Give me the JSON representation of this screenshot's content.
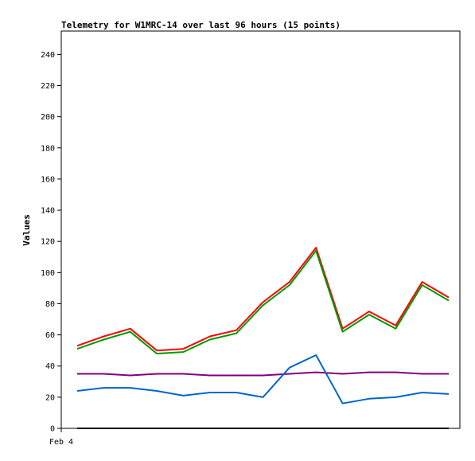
{
  "chart_data": {
    "type": "line",
    "title": "Telemetry for W1MRC-14 over last 96 hours (15 points)",
    "xlabel": "",
    "ylabel": "Values",
    "x_tick_labels": [
      "Feb 4"
    ],
    "yticks": [
      0,
      20,
      40,
      60,
      80,
      100,
      120,
      140,
      160,
      180,
      200,
      220,
      240
    ],
    "ylim": [
      0,
      255
    ],
    "grid": false,
    "legend": "none",
    "series": [
      {
        "color": "#ff0000",
        "values": [
          53,
          59,
          64,
          50,
          51,
          59,
          63,
          81,
          94,
          116,
          64,
          75,
          66,
          94,
          84
        ]
      },
      {
        "color": "#009900",
        "values": [
          51,
          57,
          62,
          48,
          49,
          57,
          61,
          79,
          92,
          114,
          62,
          73,
          64,
          92,
          82
        ]
      },
      {
        "color": "#800080",
        "values": [
          35,
          35,
          34,
          35,
          35,
          34,
          34,
          34,
          35,
          36,
          35,
          36,
          36,
          35,
          35
        ]
      },
      {
        "color": "#0066cc",
        "values": [
          24,
          26,
          26,
          24,
          21,
          23,
          23,
          20,
          39,
          47,
          16,
          19,
          20,
          23,
          22
        ]
      },
      {
        "color": "#000000",
        "values": [
          0,
          0,
          0,
          0,
          0,
          0,
          0,
          0,
          0,
          0,
          0,
          0,
          0,
          0,
          0
        ]
      }
    ]
  }
}
